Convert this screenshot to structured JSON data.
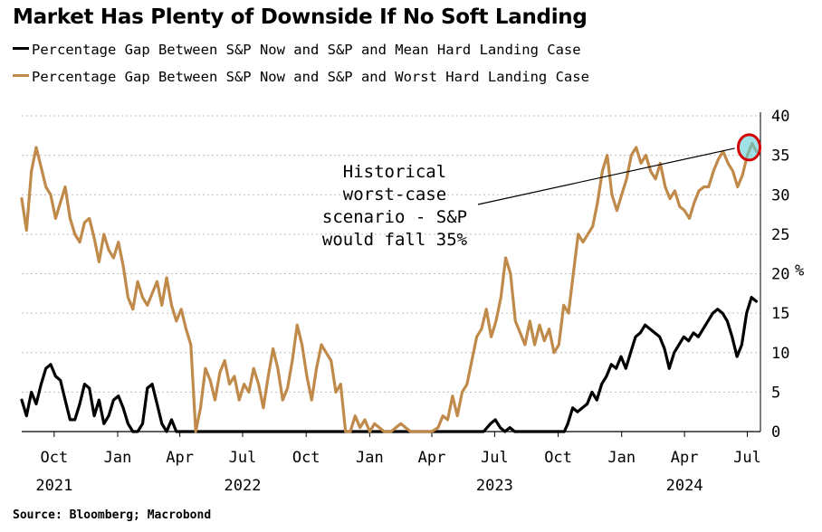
{
  "title": "Market Has Plenty of Downside If No Soft Landing",
  "source": "Source: Bloomberg; Macrobond",
  "colors": {
    "mean": "#000000",
    "worst": "#c08a4a",
    "marker_ring": "#d40000",
    "marker_fill": "#5fd0d8",
    "grid": "#bdbdbd"
  },
  "chart_data": {
    "type": "line",
    "title": "Market Has Plenty of Downside If No Soft Landing",
    "unit": "%",
    "ylim": [
      0,
      40
    ],
    "y_ticks": [
      0,
      5,
      10,
      15,
      20,
      25,
      30,
      35,
      40
    ],
    "x_range": [
      "2021-08-15",
      "2024-07-20"
    ],
    "x_ticks": [
      {
        "date": "2021-10-01",
        "label": "Oct",
        "year": "2021"
      },
      {
        "date": "2022-01-01",
        "label": "Jan",
        "year": ""
      },
      {
        "date": "2022-04-01",
        "label": "Apr",
        "year": ""
      },
      {
        "date": "2022-07-01",
        "label": "Jul",
        "year": "2022"
      },
      {
        "date": "2022-10-01",
        "label": "Oct",
        "year": ""
      },
      {
        "date": "2023-01-01",
        "label": "Jan",
        "year": ""
      },
      {
        "date": "2023-04-01",
        "label": "Apr",
        "year": ""
      },
      {
        "date": "2023-07-01",
        "label": "Jul",
        "year": "2023"
      },
      {
        "date": "2023-10-01",
        "label": "Oct",
        "year": ""
      },
      {
        "date": "2024-01-01",
        "label": "Jan",
        "year": ""
      },
      {
        "date": "2024-04-01",
        "label": "Apr",
        "year": "2024"
      },
      {
        "date": "2024-07-01",
        "label": "Jul",
        "year": ""
      }
    ],
    "grid": "horizontal dotted",
    "legend_position": "top-left",
    "annotation": {
      "lines": [
        "Historical",
        "worst-case",
        "scenario - S&P",
        "would fall 35%"
      ],
      "target": {
        "x": "2024-07-01",
        "y": 36
      }
    },
    "series": [
      {
        "name": "Percentage Gap Between S&P Now and S&P and Mean Hard Landing Case",
        "color": "#000000",
        "points": [
          [
            "2021-08-15",
            4
          ],
          [
            "2021-08-22",
            2
          ],
          [
            "2021-08-29",
            5
          ],
          [
            "2021-09-05",
            3.5
          ],
          [
            "2021-09-12",
            6
          ],
          [
            "2021-09-19",
            8
          ],
          [
            "2021-09-26",
            8.5
          ],
          [
            "2021-10-03",
            7
          ],
          [
            "2021-10-10",
            6.5
          ],
          [
            "2021-10-17",
            4
          ],
          [
            "2021-10-24",
            1.5
          ],
          [
            "2021-10-31",
            1.5
          ],
          [
            "2021-11-07",
            3.5
          ],
          [
            "2021-11-14",
            6
          ],
          [
            "2021-11-21",
            5.5
          ],
          [
            "2021-11-28",
            2
          ],
          [
            "2021-12-05",
            4
          ],
          [
            "2021-12-12",
            1
          ],
          [
            "2021-12-19",
            2
          ],
          [
            "2021-12-26",
            4
          ],
          [
            "2022-01-02",
            4.5
          ],
          [
            "2022-01-09",
            3
          ],
          [
            "2022-01-16",
            1
          ],
          [
            "2022-01-23",
            0
          ],
          [
            "2022-01-30",
            0
          ],
          [
            "2022-02-06",
            1
          ],
          [
            "2022-02-13",
            5.5
          ],
          [
            "2022-02-20",
            6
          ],
          [
            "2022-02-27",
            3.5
          ],
          [
            "2022-03-06",
            1
          ],
          [
            "2022-03-13",
            0
          ],
          [
            "2022-03-20",
            1.5
          ],
          [
            "2022-03-27",
            0
          ],
          [
            "2022-06-01",
            0
          ],
          [
            "2022-09-01",
            0
          ],
          [
            "2022-12-01",
            0
          ],
          [
            "2023-03-01",
            0
          ],
          [
            "2023-06-15",
            0
          ],
          [
            "2023-06-25",
            1
          ],
          [
            "2023-07-02",
            1.5
          ],
          [
            "2023-07-09",
            0.5
          ],
          [
            "2023-07-16",
            0
          ],
          [
            "2023-07-23",
            0.5
          ],
          [
            "2023-07-30",
            0
          ],
          [
            "2023-08-15",
            0
          ],
          [
            "2023-09-01",
            0
          ],
          [
            "2023-09-15",
            0
          ],
          [
            "2023-10-01",
            0
          ],
          [
            "2023-10-10",
            0
          ],
          [
            "2023-10-15",
            1
          ],
          [
            "2023-10-22",
            3
          ],
          [
            "2023-10-29",
            2.5
          ],
          [
            "2023-11-05",
            3
          ],
          [
            "2023-11-12",
            3.5
          ],
          [
            "2023-11-19",
            5
          ],
          [
            "2023-11-26",
            4
          ],
          [
            "2023-12-03",
            6
          ],
          [
            "2023-12-10",
            7
          ],
          [
            "2023-12-17",
            8.5
          ],
          [
            "2023-12-24",
            8
          ],
          [
            "2023-12-31",
            9.5
          ],
          [
            "2024-01-07",
            8
          ],
          [
            "2024-01-14",
            10
          ],
          [
            "2024-01-21",
            12
          ],
          [
            "2024-01-28",
            12.5
          ],
          [
            "2024-02-04",
            13.5
          ],
          [
            "2024-02-11",
            13
          ],
          [
            "2024-02-18",
            12.5
          ],
          [
            "2024-02-25",
            12
          ],
          [
            "2024-03-03",
            10.5
          ],
          [
            "2024-03-10",
            8
          ],
          [
            "2024-03-17",
            10
          ],
          [
            "2024-03-24",
            11
          ],
          [
            "2024-03-31",
            12
          ],
          [
            "2024-04-07",
            11.5
          ],
          [
            "2024-04-14",
            12.5
          ],
          [
            "2024-04-21",
            12
          ],
          [
            "2024-04-28",
            13
          ],
          [
            "2024-05-05",
            14
          ],
          [
            "2024-05-12",
            15
          ],
          [
            "2024-05-19",
            15.5
          ],
          [
            "2024-05-26",
            15
          ],
          [
            "2024-06-02",
            14
          ],
          [
            "2024-06-09",
            12
          ],
          [
            "2024-06-16",
            9.5
          ],
          [
            "2024-06-23",
            11
          ],
          [
            "2024-06-30",
            15
          ],
          [
            "2024-07-07",
            17
          ],
          [
            "2024-07-14",
            16.5
          ]
        ]
      },
      {
        "name": "Percentage Gap Between S&P Now and S&P and Worst Hard Landing Case",
        "color": "#c08a4a",
        "points": [
          [
            "2021-08-15",
            29.5
          ],
          [
            "2021-08-22",
            25.5
          ],
          [
            "2021-08-29",
            33
          ],
          [
            "2021-09-05",
            36
          ],
          [
            "2021-09-12",
            33.5
          ],
          [
            "2021-09-19",
            31
          ],
          [
            "2021-09-26",
            30
          ],
          [
            "2021-10-03",
            27
          ],
          [
            "2021-10-10",
            29
          ],
          [
            "2021-10-17",
            31
          ],
          [
            "2021-10-24",
            27
          ],
          [
            "2021-10-31",
            25
          ],
          [
            "2021-11-07",
            24
          ],
          [
            "2021-11-14",
            26.5
          ],
          [
            "2021-11-21",
            27
          ],
          [
            "2021-11-28",
            24.5
          ],
          [
            "2021-12-05",
            21.5
          ],
          [
            "2021-12-12",
            25
          ],
          [
            "2021-12-19",
            23
          ],
          [
            "2021-12-26",
            22
          ],
          [
            "2022-01-02",
            24
          ],
          [
            "2022-01-09",
            21
          ],
          [
            "2022-01-16",
            17
          ],
          [
            "2022-01-23",
            15.5
          ],
          [
            "2022-01-30",
            19
          ],
          [
            "2022-02-06",
            17
          ],
          [
            "2022-02-13",
            16
          ],
          [
            "2022-02-20",
            17.5
          ],
          [
            "2022-02-27",
            19
          ],
          [
            "2022-03-06",
            16
          ],
          [
            "2022-03-13",
            19.5
          ],
          [
            "2022-03-20",
            16
          ],
          [
            "2022-03-27",
            14
          ],
          [
            "2022-04-03",
            15.5
          ],
          [
            "2022-04-10",
            13
          ],
          [
            "2022-04-17",
            11
          ],
          [
            "2022-04-24",
            0
          ],
          [
            "2022-05-01",
            3
          ],
          [
            "2022-05-08",
            8
          ],
          [
            "2022-05-15",
            6.5
          ],
          [
            "2022-05-22",
            4
          ],
          [
            "2022-05-29",
            7.5
          ],
          [
            "2022-06-05",
            9
          ],
          [
            "2022-06-12",
            6
          ],
          [
            "2022-06-19",
            7
          ],
          [
            "2022-06-26",
            4
          ],
          [
            "2022-07-03",
            6
          ],
          [
            "2022-07-10",
            5
          ],
          [
            "2022-07-17",
            8
          ],
          [
            "2022-07-24",
            6
          ],
          [
            "2022-07-31",
            3
          ],
          [
            "2022-08-07",
            7
          ],
          [
            "2022-08-14",
            10.5
          ],
          [
            "2022-08-21",
            8
          ],
          [
            "2022-08-28",
            4
          ],
          [
            "2022-09-04",
            5.5
          ],
          [
            "2022-09-11",
            9
          ],
          [
            "2022-09-18",
            13.5
          ],
          [
            "2022-09-25",
            11
          ],
          [
            "2022-10-02",
            7
          ],
          [
            "2022-10-09",
            4
          ],
          [
            "2022-10-16",
            8
          ],
          [
            "2022-10-23",
            11
          ],
          [
            "2022-10-30",
            10
          ],
          [
            "2022-11-06",
            9
          ],
          [
            "2022-11-13",
            5
          ],
          [
            "2022-11-20",
            6
          ],
          [
            "2022-11-27",
            0
          ],
          [
            "2022-12-04",
            0
          ],
          [
            "2022-12-11",
            2
          ],
          [
            "2022-12-18",
            0.5
          ],
          [
            "2022-12-25",
            1.5
          ],
          [
            "2023-01-01",
            0
          ],
          [
            "2023-01-08",
            1
          ],
          [
            "2023-01-15",
            0.5
          ],
          [
            "2023-01-22",
            0
          ],
          [
            "2023-02-01",
            0
          ],
          [
            "2023-02-15",
            1
          ],
          [
            "2023-03-01",
            0
          ],
          [
            "2023-03-15",
            0
          ],
          [
            "2023-04-01",
            0
          ],
          [
            "2023-04-10",
            0.5
          ],
          [
            "2023-04-17",
            2
          ],
          [
            "2023-04-24",
            1.5
          ],
          [
            "2023-05-01",
            4.5
          ],
          [
            "2023-05-08",
            2
          ],
          [
            "2023-05-15",
            5
          ],
          [
            "2023-05-22",
            6
          ],
          [
            "2023-05-29",
            9
          ],
          [
            "2023-06-05",
            12
          ],
          [
            "2023-06-12",
            13
          ],
          [
            "2023-06-19",
            15.5
          ],
          [
            "2023-06-26",
            12
          ],
          [
            "2023-07-03",
            14
          ],
          [
            "2023-07-10",
            17
          ],
          [
            "2023-07-17",
            22
          ],
          [
            "2023-07-24",
            20
          ],
          [
            "2023-07-31",
            14
          ],
          [
            "2023-08-07",
            12.5
          ],
          [
            "2023-08-14",
            11
          ],
          [
            "2023-08-21",
            14
          ],
          [
            "2023-08-28",
            11
          ],
          [
            "2023-09-04",
            13.5
          ],
          [
            "2023-09-11",
            11.5
          ],
          [
            "2023-09-18",
            13
          ],
          [
            "2023-09-25",
            10
          ],
          [
            "2023-10-02",
            11
          ],
          [
            "2023-10-09",
            16
          ],
          [
            "2023-10-16",
            15
          ],
          [
            "2023-10-23",
            20
          ],
          [
            "2023-10-30",
            25
          ],
          [
            "2023-11-06",
            24
          ],
          [
            "2023-11-13",
            25
          ],
          [
            "2023-11-20",
            26
          ],
          [
            "2023-11-27",
            29
          ],
          [
            "2023-12-04",
            33
          ],
          [
            "2023-12-11",
            35
          ],
          [
            "2023-12-18",
            30
          ],
          [
            "2023-12-25",
            28
          ],
          [
            "2024-01-01",
            30
          ],
          [
            "2024-01-08",
            32
          ],
          [
            "2024-01-15",
            35
          ],
          [
            "2024-01-22",
            36
          ],
          [
            "2024-01-29",
            34
          ],
          [
            "2024-02-05",
            35
          ],
          [
            "2024-02-12",
            33
          ],
          [
            "2024-02-19",
            32
          ],
          [
            "2024-02-26",
            34
          ],
          [
            "2024-03-04",
            31
          ],
          [
            "2024-03-11",
            29.5
          ],
          [
            "2024-03-18",
            30.5
          ],
          [
            "2024-03-25",
            28.5
          ],
          [
            "2024-04-01",
            28
          ],
          [
            "2024-04-08",
            27
          ],
          [
            "2024-04-15",
            29
          ],
          [
            "2024-04-22",
            30.5
          ],
          [
            "2024-04-29",
            31
          ],
          [
            "2024-05-06",
            31
          ],
          [
            "2024-05-13",
            33
          ],
          [
            "2024-05-20",
            34.5
          ],
          [
            "2024-05-27",
            35.5
          ],
          [
            "2024-06-03",
            34
          ],
          [
            "2024-06-10",
            33
          ],
          [
            "2024-06-17",
            31
          ],
          [
            "2024-06-24",
            32.5
          ],
          [
            "2024-07-01",
            35
          ],
          [
            "2024-07-08",
            36.5
          ],
          [
            "2024-07-14",
            35.5
          ]
        ]
      }
    ]
  }
}
